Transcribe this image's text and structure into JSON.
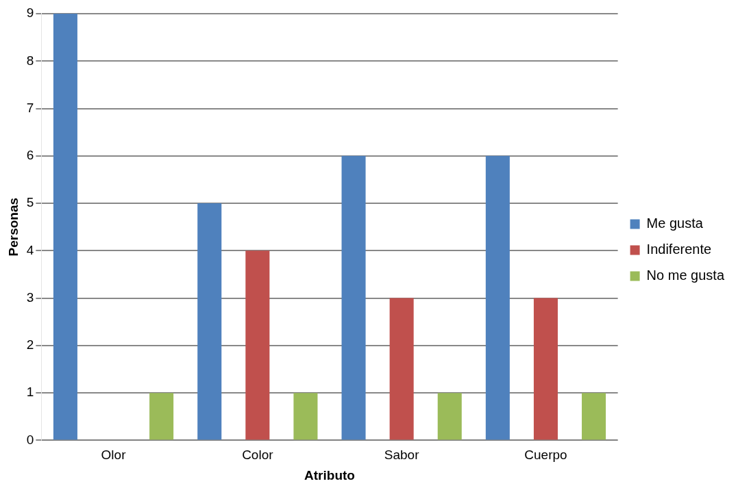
{
  "chart_data": {
    "type": "bar",
    "xlabel": "Atributo",
    "ylabel": "Personas",
    "categories": [
      "Olor",
      "Color",
      "Sabor",
      "Cuerpo"
    ],
    "series": [
      {
        "name": "Me gusta",
        "color": "#4f81bd",
        "values": [
          9,
          5,
          6,
          6
        ]
      },
      {
        "name": "Indiferente",
        "color": "#c0504d",
        "values": [
          0,
          4,
          3,
          3
        ]
      },
      {
        "name": "No me gusta",
        "color": "#9bbb59",
        "values": [
          1,
          1,
          1,
          1
        ]
      }
    ],
    "ylim": [
      0,
      9
    ],
    "yticks": [
      0,
      1,
      2,
      3,
      4,
      5,
      6,
      7,
      8,
      9
    ],
    "grid": "y",
    "legend": "right"
  }
}
